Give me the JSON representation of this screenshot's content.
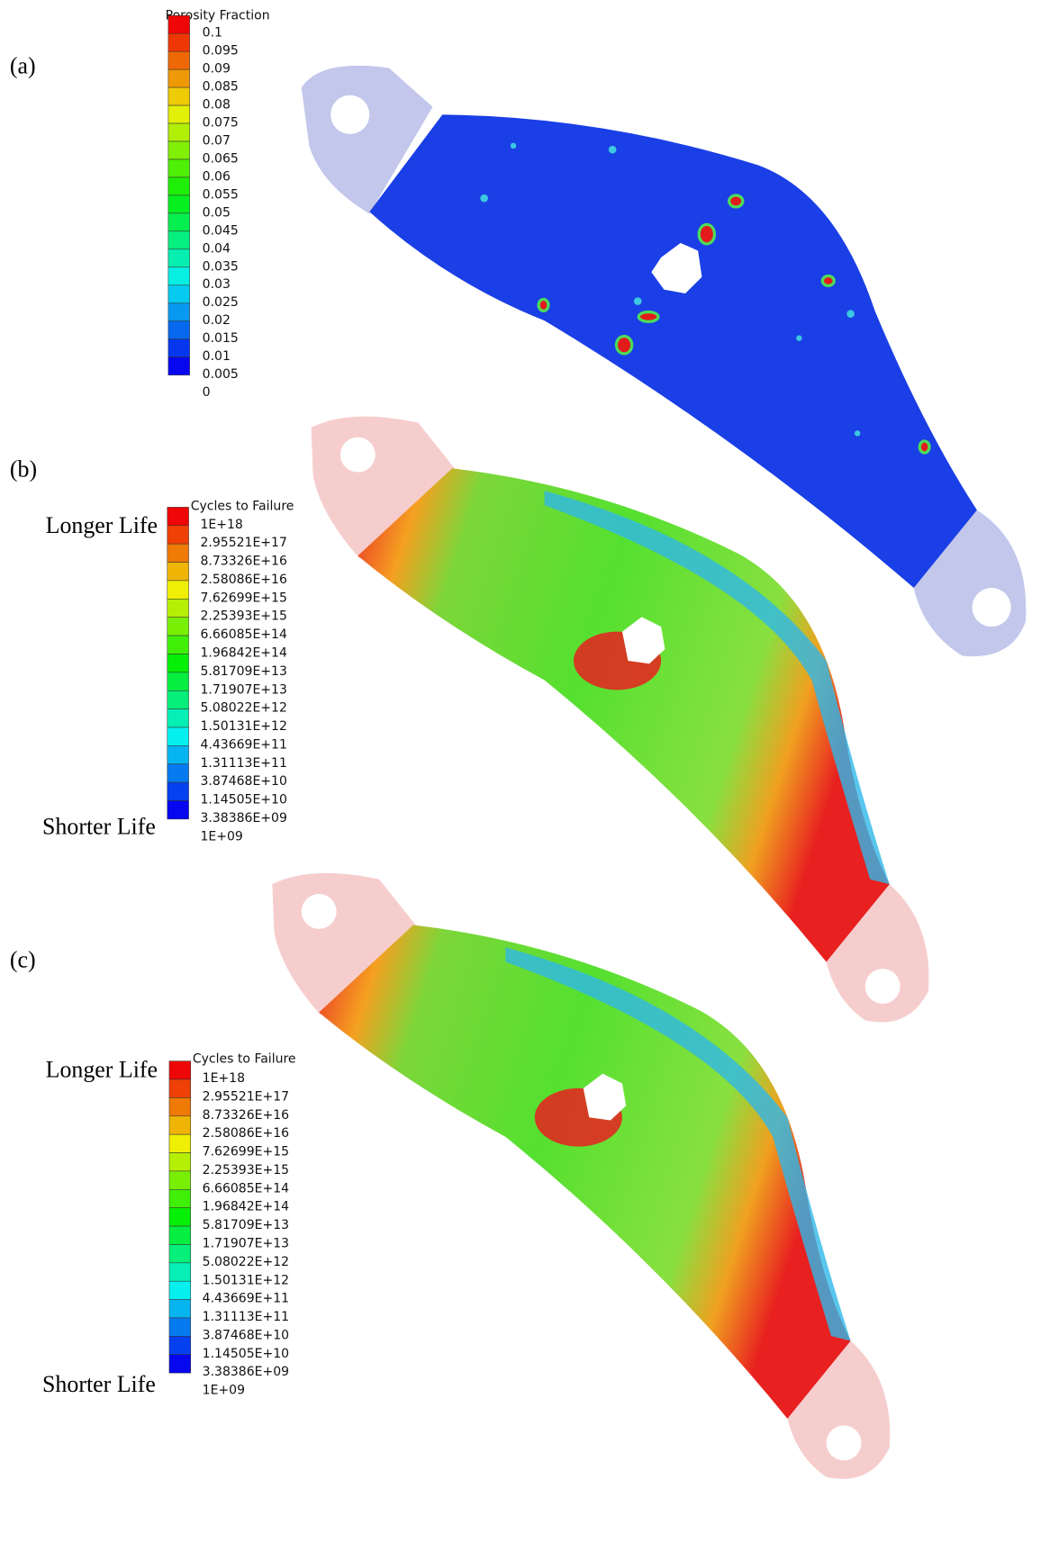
{
  "panels": [
    {
      "label": "(a)",
      "legend": {
        "title": "Porosity Fraction",
        "labels": [
          "0.1",
          "0.095",
          "0.09",
          "0.085",
          "0.08",
          "0.075",
          "0.07",
          "0.065",
          "0.06",
          "0.055",
          "0.05",
          "0.045",
          "0.04",
          "0.035",
          "0.03",
          "0.025",
          "0.02",
          "0.015",
          "0.01",
          "0.005",
          "0"
        ]
      }
    },
    {
      "label": "(b)",
      "top_label": "Longer Life",
      "bottom_label": "Shorter Life",
      "legend": {
        "title": "Cycles to Failure",
        "labels": [
          "1E+18",
          "2.95521E+17",
          "8.73326E+16",
          "2.58086E+16",
          "7.62699E+15",
          "2.25393E+15",
          "6.66085E+14",
          "1.96842E+14",
          "5.81709E+13",
          "1.71907E+13",
          "5.08022E+12",
          "1.50131E+12",
          "4.43669E+11",
          "1.31113E+11",
          "3.87468E+10",
          "1.14505E+10",
          "3.38386E+09",
          "1E+09"
        ]
      }
    },
    {
      "label": "(c)",
      "top_label": "Longer Life",
      "bottom_label": "Shorter Life",
      "legend": {
        "title": "Cycles to Failure",
        "labels": [
          "1E+18",
          "2.95521E+17",
          "8.73326E+16",
          "2.58086E+16",
          "7.62699E+15",
          "2.25393E+15",
          "6.66085E+14",
          "1.96842E+14",
          "5.81709E+13",
          "1.71907E+13",
          "5.08022E+12",
          "1.50131E+12",
          "4.43669E+11",
          "1.31113E+11",
          "3.87468E+10",
          "1.14505E+10",
          "3.38386E+09",
          "1E+09"
        ]
      }
    }
  ]
}
